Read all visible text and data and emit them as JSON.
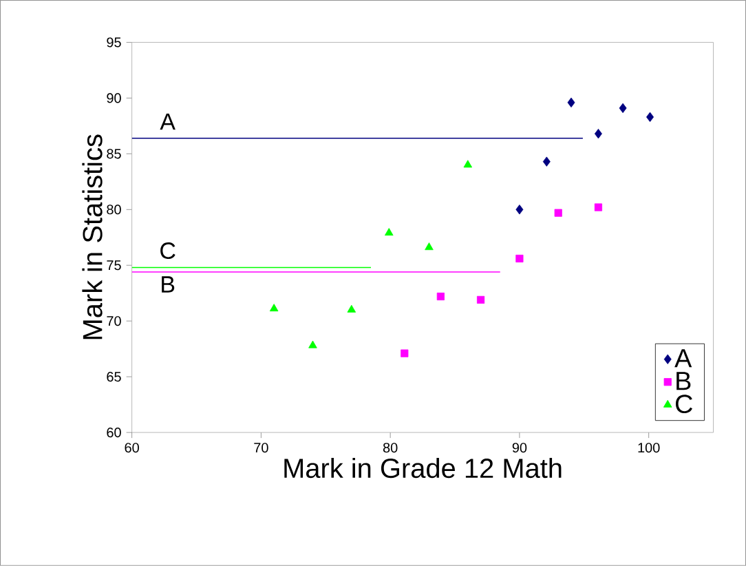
{
  "chart_data": {
    "type": "scatter",
    "xlabel": "Mark in Grade 12 Math",
    "ylabel": "Mark in Statistics",
    "xlim": [
      60,
      105
    ],
    "ylim": [
      60,
      95
    ],
    "xticks": [
      60,
      70,
      80,
      90,
      100
    ],
    "yticks": [
      60,
      65,
      70,
      75,
      80,
      85,
      90,
      95
    ],
    "grid": false,
    "legend": "bottom right",
    "series": [
      {
        "name": "A",
        "color": "#000080",
        "marker": "diamond",
        "x": [
          90,
          92.1,
          94,
          96.1,
          98,
          100.1
        ],
        "values": [
          80,
          84.3,
          89.6,
          86.8,
          89.1,
          88.3
        ]
      },
      {
        "name": "B",
        "color": "#ff00ff",
        "marker": "square",
        "x": [
          81.1,
          83.9,
          87,
          90,
          93,
          96.1
        ],
        "values": [
          67.1,
          72.2,
          71.9,
          75.6,
          79.7,
          80.2
        ]
      },
      {
        "name": "C",
        "color": "#00ff00",
        "marker": "triangle",
        "x": [
          71,
          74,
          77,
          79.9,
          83,
          86
        ],
        "values": [
          71.1,
          67.8,
          71,
          77.9,
          76.6,
          84
        ]
      },
      {
        "type": "line",
        "name": "A",
        "color": "#000080",
        "marker": "none",
        "line_style": "solid",
        "x": [
          60,
          94.9
        ],
        "values": [
          86.4,
          86.4
        ]
      },
      {
        "type": "line",
        "name": "B",
        "color": "#ff00ff",
        "marker": "none",
        "line_style": "solid",
        "x": [
          60,
          88.5
        ],
        "values": [
          74.4,
          74.4
        ]
      },
      {
        "type": "line",
        "name": "C",
        "color": "#00ff00",
        "marker": "none",
        "line_style": "solid",
        "x": [
          60,
          78.5
        ],
        "values": [
          74.8,
          74.8
        ]
      }
    ]
  }
}
